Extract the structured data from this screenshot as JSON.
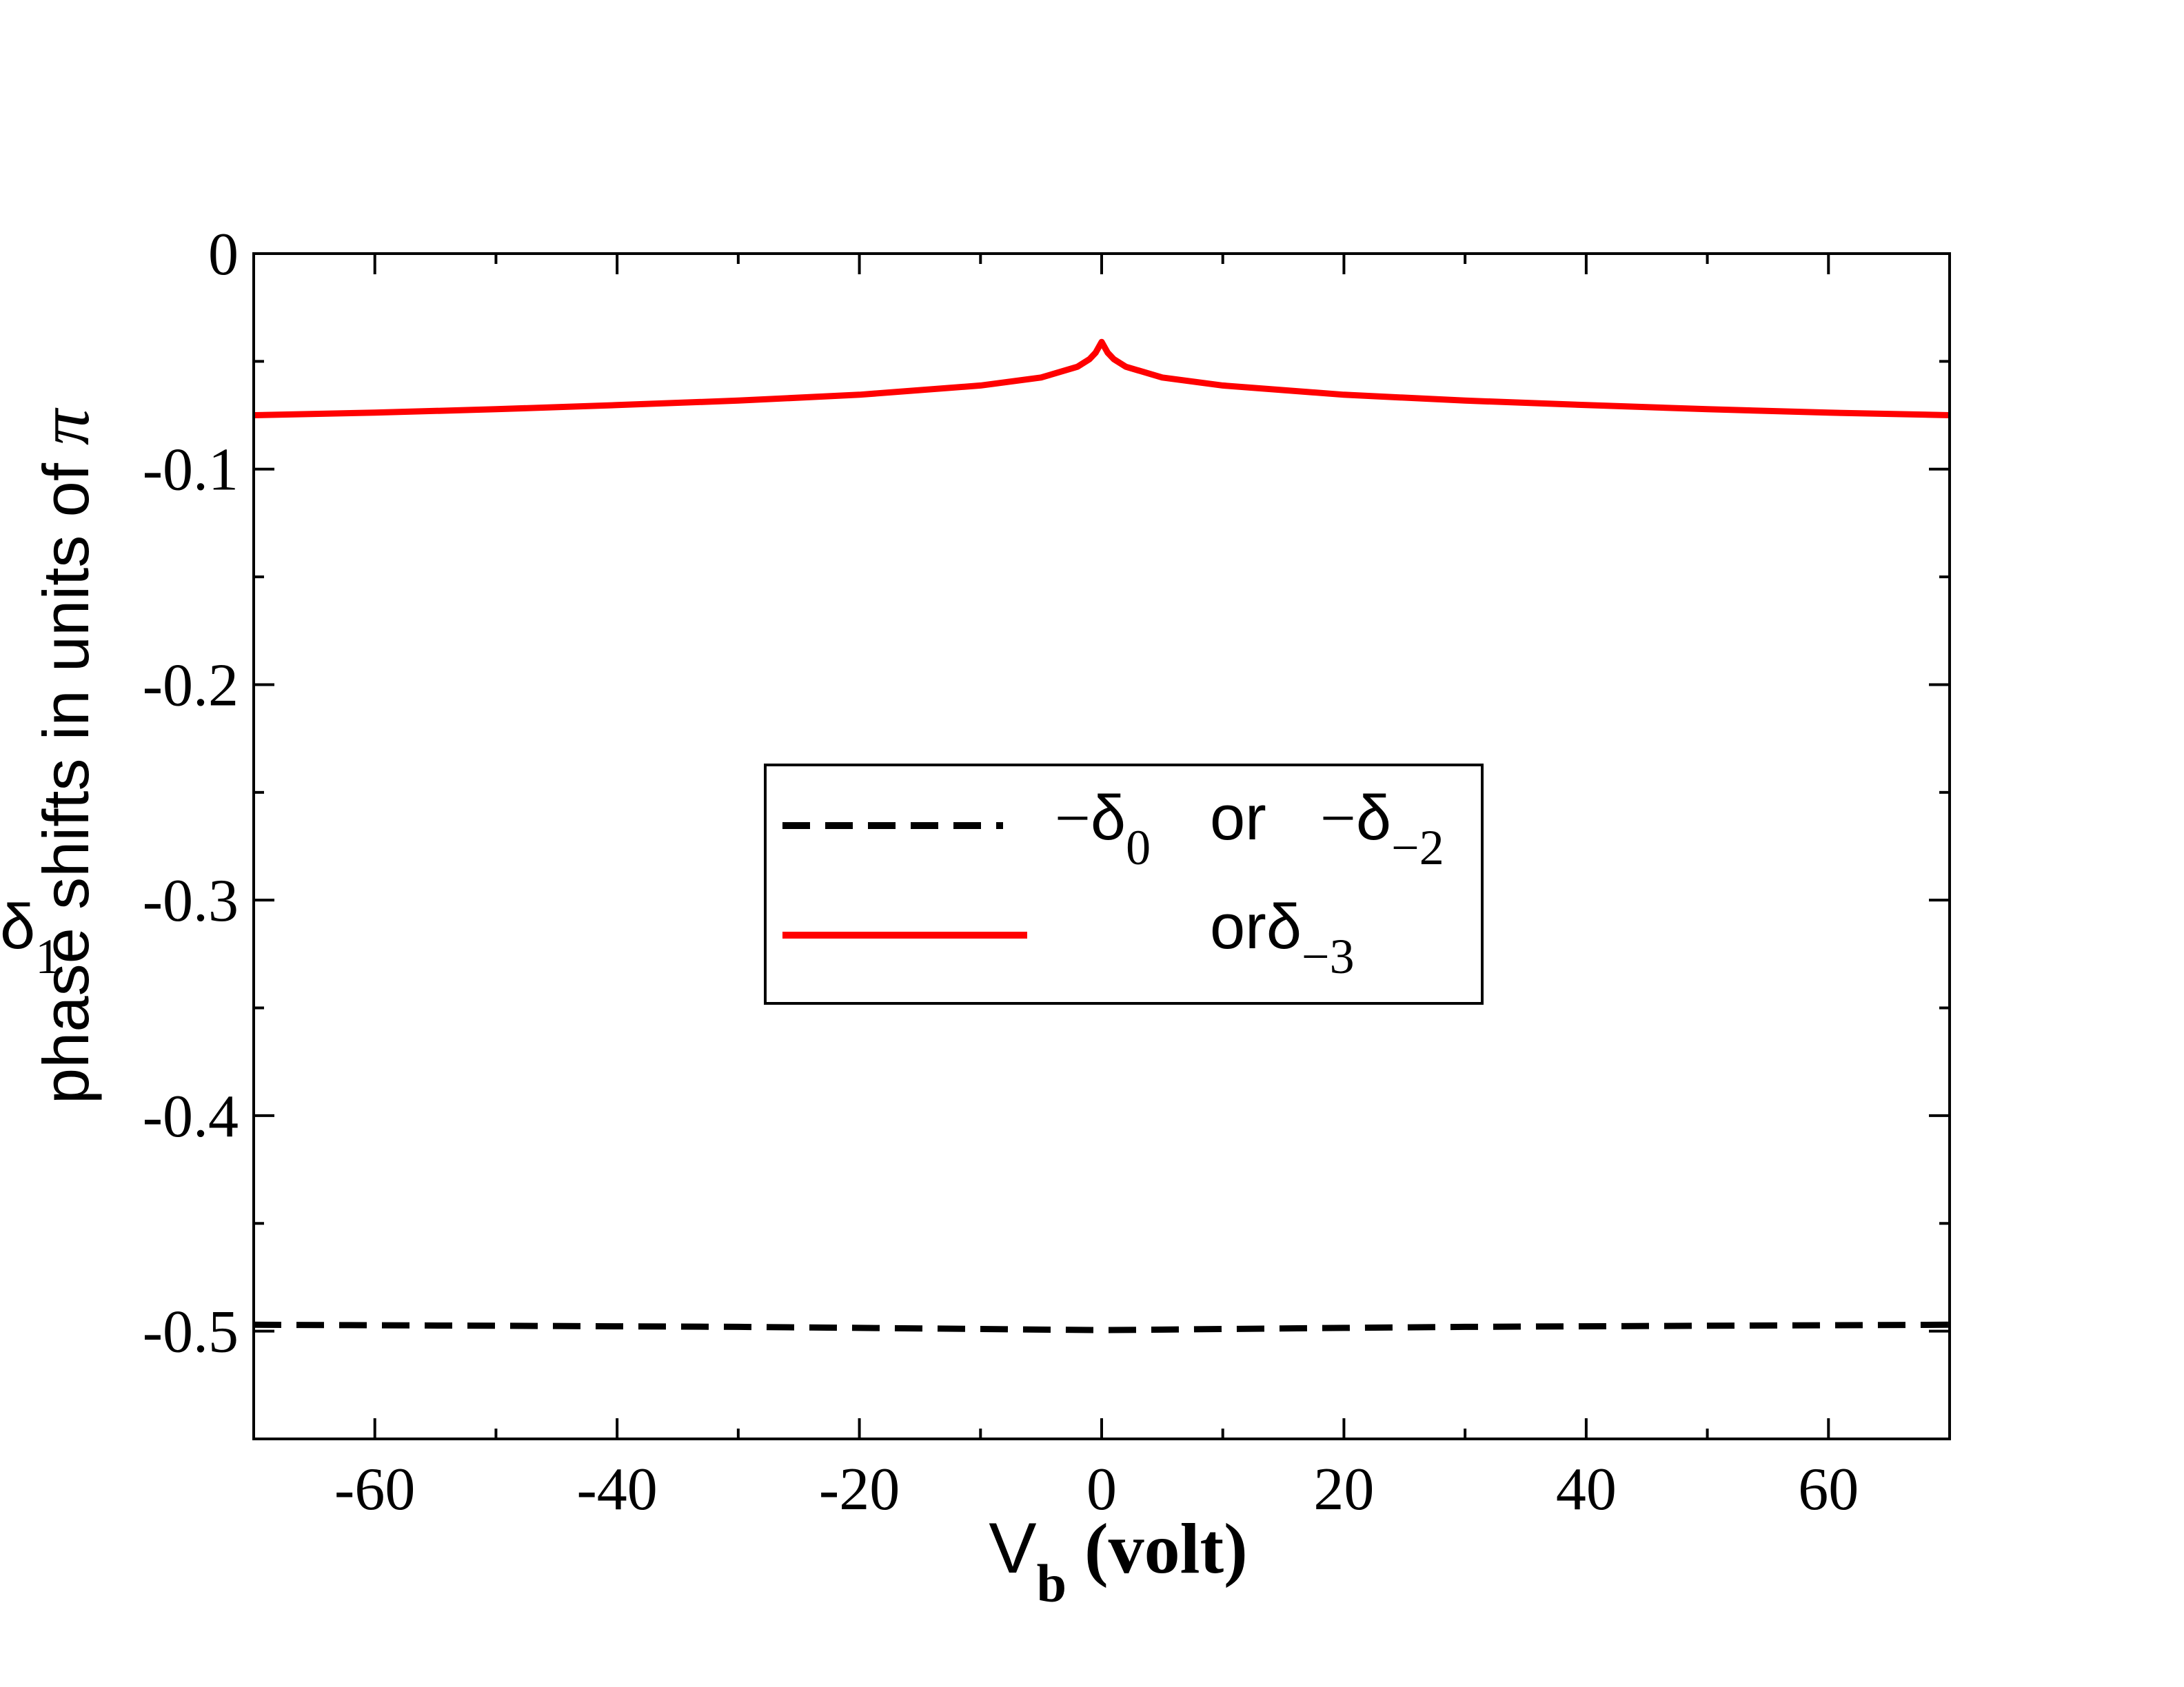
{
  "chart_data": {
    "type": "line",
    "title": "",
    "xlabel": {
      "main": "V",
      "sub": "b",
      "rest": " (volt)"
    },
    "ylabel": {
      "main": "phase shifts in units of ",
      "symbol": "π"
    },
    "xlim": [
      -70,
      70
    ],
    "ylim": [
      -0.55,
      0
    ],
    "xticks": [
      -60,
      -40,
      -20,
      0,
      20,
      40,
      60
    ],
    "xtick_labels": [
      "-60",
      "-40",
      "-20",
      "0",
      "20",
      "40",
      "60"
    ],
    "xminor_step": 10,
    "yticks": [
      0,
      -0.1,
      -0.2,
      -0.3,
      -0.4,
      -0.5
    ],
    "ytick_labels": [
      "0",
      "-0.1",
      "-0.2",
      "-0.3",
      "-0.4",
      "-0.5"
    ],
    "yminor_step": 0.05,
    "grid": false,
    "legend_position": "center",
    "colors": {
      "series_a": "#000000",
      "series_b": "#ff0000",
      "axes": "#000000"
    },
    "series": [
      {
        "legend": {
          "a_sign": "−",
          "a_sym": "δ",
          "a_sub": "0",
          "or": "or",
          "b_sign": "−",
          "b_sym": "δ",
          "b_sub": "−2"
        },
        "style": "dashed",
        "color": "#000000",
        "x": [
          -70,
          -50,
          -30,
          -20,
          -10,
          -5,
          0,
          5,
          10,
          20,
          30,
          50,
          70
        ],
        "y": [
          -0.497,
          -0.4975,
          -0.498,
          -0.4985,
          -0.499,
          -0.4993,
          -0.4995,
          -0.4993,
          -0.499,
          -0.4985,
          -0.498,
          -0.4975,
          -0.497
        ]
      },
      {
        "legend": {
          "a_sign": "",
          "a_sym": "δ",
          "a_sub": "1",
          "or": "or",
          "b_sign": "",
          "b_sym": "δ",
          "b_sub": "−3"
        },
        "style": "solid",
        "color": "#ff0000",
        "x": [
          -70,
          -60,
          -50,
          -40,
          -30,
          -20,
          -10,
          -5,
          -2,
          -1,
          -0.5,
          0,
          0.5,
          1,
          2,
          5,
          10,
          20,
          30,
          40,
          50,
          60,
          70
        ],
        "y": [
          -0.075,
          -0.0738,
          -0.0722,
          -0.0703,
          -0.0682,
          -0.0655,
          -0.0612,
          -0.0575,
          -0.0525,
          -0.049,
          -0.046,
          -0.041,
          -0.046,
          -0.049,
          -0.0525,
          -0.0575,
          -0.0612,
          -0.0655,
          -0.0682,
          -0.0703,
          -0.0722,
          -0.0738,
          -0.075
        ]
      }
    ]
  }
}
